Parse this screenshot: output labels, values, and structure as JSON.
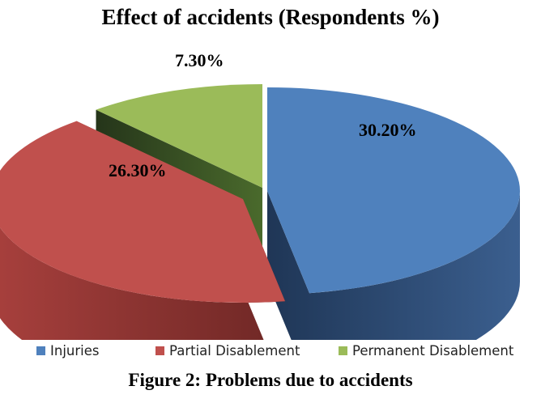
{
  "chart_data": {
    "type": "pie",
    "title": "Effect of accidents (Respondents %)",
    "categories": [
      "Injuries",
      "Partial Disablement",
      "Permanent Disablement"
    ],
    "values": [
      30.2,
      26.3,
      7.3
    ],
    "data_labels": [
      "30.20%",
      "26.30%",
      "7.30%"
    ],
    "colors": [
      "#4f81bd",
      "#c0504d",
      "#9bbb59"
    ],
    "legend_position": "bottom",
    "style": "3d-exploded"
  },
  "caption": "Figure 2: Problems due to accidents"
}
